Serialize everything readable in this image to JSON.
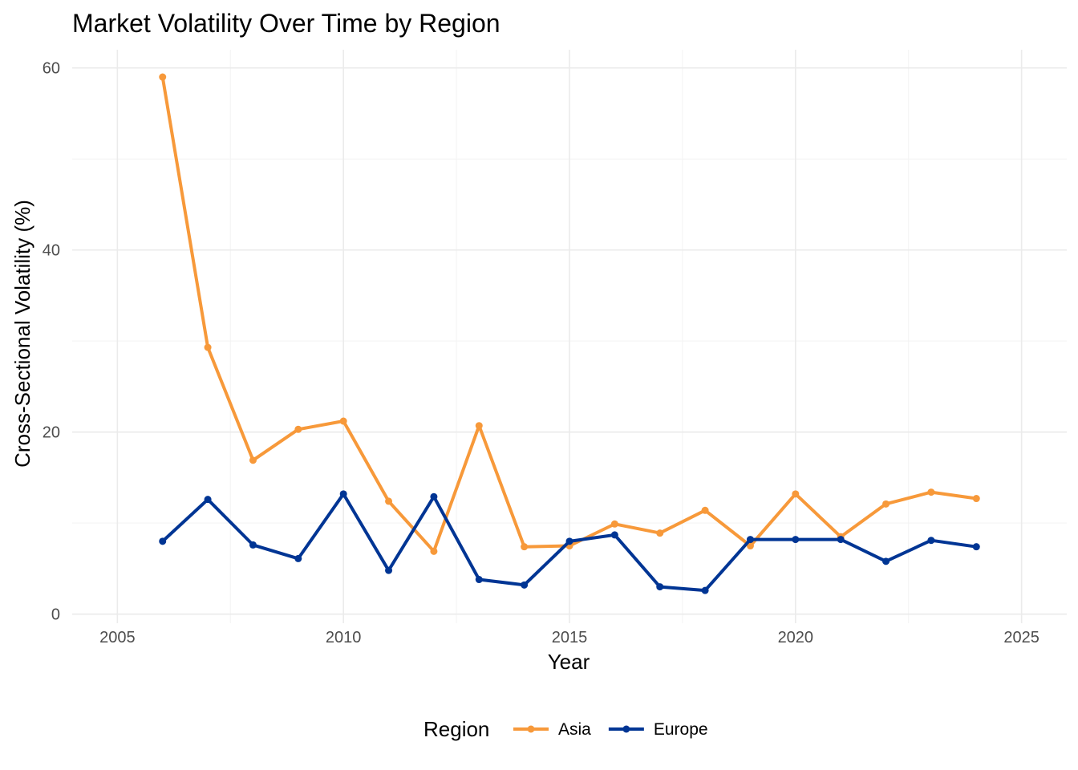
{
  "chart_data": {
    "type": "line",
    "title": "Market Volatility Over Time by Region",
    "xlabel": "Year",
    "ylabel": "Cross-Sectional Volatility (%)",
    "xlim": [
      2004,
      2026
    ],
    "ylim": [
      -1,
      62
    ],
    "x_ticks": [
      2005,
      2010,
      2015,
      2020,
      2025
    ],
    "y_ticks": [
      0,
      20,
      40,
      60
    ],
    "grid": true,
    "legend": {
      "title": "Region",
      "position": "bottom"
    },
    "x": [
      2006,
      2007,
      2008,
      2009,
      2010,
      2011,
      2012,
      2013,
      2014,
      2015,
      2016,
      2017,
      2018,
      2019,
      2020,
      2021,
      2022,
      2023,
      2024
    ],
    "series": [
      {
        "name": "Asia",
        "color": "#F7993A",
        "values": [
          59.0,
          29.3,
          16.9,
          20.3,
          21.2,
          12.4,
          6.9,
          20.7,
          7.4,
          7.5,
          9.9,
          8.9,
          11.4,
          7.5,
          13.2,
          8.5,
          12.1,
          13.4,
          12.7
        ]
      },
      {
        "name": "Europe",
        "color": "#003594",
        "values": [
          8.0,
          12.6,
          7.6,
          6.1,
          13.2,
          4.8,
          12.9,
          3.8,
          3.2,
          8.0,
          8.7,
          3.0,
          2.6,
          8.2,
          8.2,
          8.2,
          5.8,
          8.1,
          7.4
        ]
      }
    ]
  }
}
